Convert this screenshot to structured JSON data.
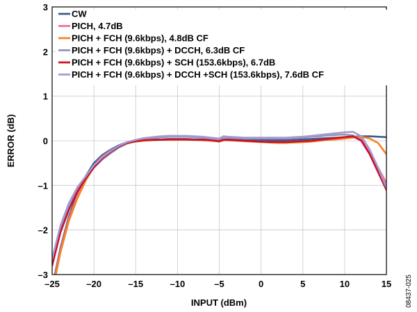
{
  "chart_data": {
    "type": "line",
    "xlabel": "INPUT (dBm)",
    "ylabel": "ERROR (dB)",
    "xlim": [
      -25,
      15
    ],
    "ylim": [
      -3,
      3
    ],
    "xticks": [
      -25,
      -20,
      -15,
      -10,
      -5,
      0,
      5,
      10,
      15
    ],
    "yticks": [
      -3,
      -2,
      -1,
      0,
      1,
      2,
      3
    ],
    "x_tick_labels": [
      "–25",
      "–20",
      "–15",
      "–10",
      "–5",
      "0",
      "5",
      "10",
      "15"
    ],
    "y_tick_labels": [
      "–3",
      "–2",
      "–1",
      "0",
      "1",
      "2",
      "3"
    ],
    "grid": true,
    "legend_position": "top-left",
    "figure_id": "08437-025",
    "x": [
      -25,
      -24,
      -23,
      -22,
      -21,
      -20,
      -19,
      -18,
      -17,
      -16,
      -15,
      -14,
      -13,
      -12,
      -11,
      -10,
      -9,
      -8,
      -7,
      -6,
      -5,
      -4.5,
      -4,
      -3,
      -2,
      -1,
      0,
      1,
      2,
      3,
      4,
      5,
      6,
      7,
      8,
      9,
      10,
      11,
      12,
      13,
      14,
      15
    ],
    "series": [
      {
        "name": "CW",
        "color": "#3a5a8c",
        "values": [
          -3.3,
          -2.4,
          -1.7,
          -1.2,
          -0.8,
          -0.5,
          -0.32,
          -0.2,
          -0.1,
          -0.03,
          0.0,
          0.02,
          0.03,
          0.03,
          0.04,
          0.04,
          0.04,
          0.03,
          0.03,
          0.02,
          0.0,
          0.03,
          0.03,
          0.02,
          0.02,
          0.02,
          0.02,
          0.01,
          0.01,
          0.01,
          0.02,
          0.03,
          0.04,
          0.05,
          0.06,
          0.07,
          0.08,
          0.09,
          0.1,
          0.1,
          0.09,
          0.08
        ]
      },
      {
        "name": "PICH, 4.7dB",
        "color": "#f07090",
        "values": [
          -3.35,
          -2.45,
          -1.75,
          -1.25,
          -0.85,
          -0.55,
          -0.35,
          -0.22,
          -0.12,
          -0.05,
          -0.01,
          0.01,
          0.02,
          0.02,
          0.03,
          0.03,
          0.03,
          0.02,
          0.02,
          0.01,
          -0.01,
          0.02,
          0.02,
          0.01,
          0.0,
          -0.01,
          -0.02,
          -0.03,
          -0.03,
          -0.03,
          -0.02,
          -0.01,
          0.0,
          0.02,
          0.04,
          0.06,
          0.08,
          0.1,
          0.05,
          -0.25,
          -0.6,
          -0.95
        ]
      },
      {
        "name": "PICH + FCH (9.6kbps), 4.8dB CF",
        "color": "#f58220",
        "values": [
          -3.4,
          -2.5,
          -1.8,
          -1.3,
          -0.9,
          -0.58,
          -0.37,
          -0.24,
          -0.13,
          -0.06,
          -0.02,
          0.0,
          0.01,
          0.02,
          0.02,
          0.02,
          0.02,
          0.02,
          0.01,
          0.0,
          -0.02,
          0.01,
          0.01,
          0.0,
          -0.01,
          -0.02,
          -0.03,
          -0.04,
          -0.05,
          -0.05,
          -0.04,
          -0.03,
          -0.02,
          0.0,
          0.02,
          0.03,
          0.05,
          0.07,
          0.09,
          0.05,
          -0.05,
          -0.3
        ]
      },
      {
        "name": "PICH + FCH (9.6kbps) + DCCH, 6.3dB CF",
        "color": "#8f97b8",
        "values": [
          -2.7,
          -1.95,
          -1.45,
          -1.1,
          -0.85,
          -0.6,
          -0.42,
          -0.28,
          -0.15,
          -0.06,
          0.0,
          0.04,
          0.06,
          0.08,
          0.09,
          0.09,
          0.09,
          0.08,
          0.07,
          0.05,
          0.03,
          0.08,
          0.07,
          0.06,
          0.05,
          0.05,
          0.05,
          0.05,
          0.05,
          0.05,
          0.06,
          0.07,
          0.09,
          0.1,
          0.12,
          0.13,
          0.14,
          0.12,
          0.0,
          -0.3,
          -0.7,
          -1.1
        ]
      },
      {
        "name": "PICH + FCH (9.6kbps) + SCH (153.6kbps), 6.7dB",
        "color": "#c8102e",
        "values": [
          -2.8,
          -2.05,
          -1.55,
          -1.15,
          -0.85,
          -0.6,
          -0.4,
          -0.25,
          -0.13,
          -0.05,
          -0.01,
          0.01,
          0.02,
          0.02,
          0.03,
          0.03,
          0.03,
          0.02,
          0.02,
          0.01,
          -0.01,
          0.02,
          0.02,
          0.01,
          0.0,
          -0.01,
          -0.02,
          -0.03,
          -0.03,
          -0.03,
          -0.02,
          -0.01,
          0.0,
          0.02,
          0.04,
          0.06,
          0.08,
          0.1,
          0.0,
          -0.3,
          -0.7,
          -1.1
        ]
      },
      {
        "name": "PICH + FCH (9.6kbps) + DCCH +SCH (153.6kbps), 7.6dB CF",
        "color": "#a59ad0",
        "values": [
          -2.65,
          -1.9,
          -1.4,
          -1.05,
          -0.8,
          -0.55,
          -0.37,
          -0.23,
          -0.11,
          -0.03,
          0.02,
          0.06,
          0.08,
          0.1,
          0.11,
          0.11,
          0.11,
          0.1,
          0.09,
          0.07,
          0.05,
          0.1,
          0.09,
          0.08,
          0.07,
          0.07,
          0.07,
          0.07,
          0.07,
          0.07,
          0.08,
          0.09,
          0.11,
          0.13,
          0.15,
          0.17,
          0.19,
          0.2,
          0.1,
          -0.2,
          -0.6,
          -1.05
        ]
      }
    ]
  }
}
